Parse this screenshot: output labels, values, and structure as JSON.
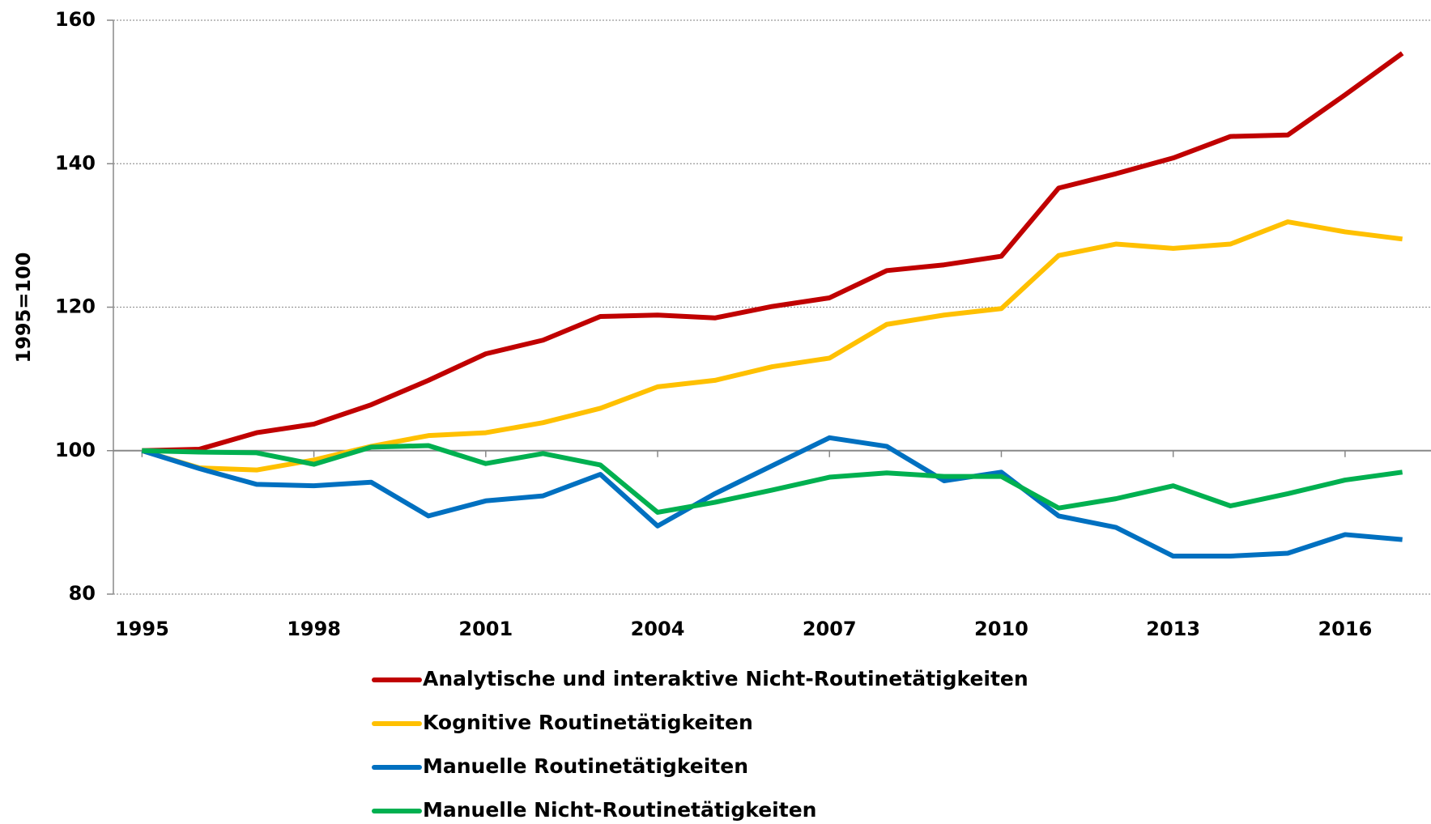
{
  "chart_data": {
    "type": "line",
    "y_label": "1995=100",
    "x": [
      1995,
      1996,
      1997,
      1998,
      1999,
      2000,
      2001,
      2002,
      2003,
      2004,
      2005,
      2006,
      2007,
      2008,
      2009,
      2010,
      2011,
      2012,
      2013,
      2014,
      2015,
      2016,
      2017
    ],
    "xlim": [
      1994.5,
      2017.5
    ],
    "xticks": [
      1995,
      1998,
      2001,
      2004,
      2007,
      2010,
      2013,
      2016
    ],
    "ylim": [
      80,
      160
    ],
    "yticks": [
      80,
      100,
      120,
      140,
      160
    ],
    "grid": true,
    "x_axis_crosses": 100,
    "legend": "bottom",
    "series": [
      {
        "name": "Analytische und interaktive Nicht-Routinetätigkeiten",
        "color": "#c00000",
        "values": [
          100,
          100.2,
          102.5,
          103.7,
          106.4,
          109.8,
          113.5,
          115.4,
          118.7,
          118.9,
          118.5,
          120.1,
          121.3,
          125.1,
          125.9,
          127.1,
          136.6,
          138.6,
          140.8,
          143.8,
          144,
          149.6,
          155.4
        ]
      },
      {
        "name": "Kognitive Routinetätigkeiten",
        "color": "#ffc000",
        "values": [
          100,
          97.6,
          97.3,
          98.7,
          100.6,
          102.1,
          102.5,
          103.9,
          105.9,
          108.9,
          109.8,
          111.7,
          112.9,
          117.6,
          118.9,
          119.8,
          127.2,
          128.8,
          128.2,
          128.8,
          131.9,
          130.5,
          129.5
        ]
      },
      {
        "name": "Manuelle Routinetätigkeiten",
        "color": "#0070c0",
        "values": [
          100,
          97.5,
          95.3,
          95.1,
          95.6,
          90.9,
          93,
          93.7,
          96.7,
          89.5,
          94,
          97.9,
          101.8,
          100.6,
          95.8,
          97,
          90.9,
          89.3,
          85.3,
          85.3,
          85.7,
          88.3,
          87.6
        ]
      },
      {
        "name": "Manuelle Nicht-Routinetätigkeiten",
        "color": "#00b050",
        "values": [
          100,
          99.8,
          99.7,
          98.1,
          100.5,
          100.7,
          98.2,
          99.6,
          98,
          91.4,
          92.8,
          94.5,
          96.3,
          96.9,
          96.4,
          96.4,
          92,
          93.3,
          95.1,
          92.3,
          94,
          95.9,
          97
        ]
      }
    ]
  }
}
